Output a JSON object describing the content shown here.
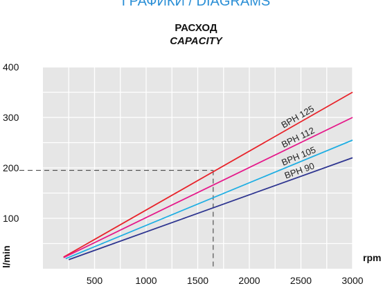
{
  "header": {
    "clipped_title": "ГРАФИКИ / DIAGRAMS",
    "title": "РАСХОД",
    "subtitle": "CAPACITY"
  },
  "chart_data": {
    "type": "line",
    "title": "РАСХОД",
    "subtitle": "CAPACITY",
    "xlabel": "rpm",
    "ylabel": "l/min",
    "xlim": [
      0,
      3000
    ],
    "ylim": [
      0,
      400
    ],
    "x_ticks": [
      500,
      1000,
      1500,
      2000,
      2500,
      3000
    ],
    "y_ticks": [
      100,
      200,
      300,
      400
    ],
    "x_grid_step": 250,
    "y_grid_step": 50,
    "grid": true,
    "legend": "labels on lines",
    "series": [
      {
        "name": "BPH 125",
        "color": "#e8232a",
        "x": [
          200,
          3000
        ],
        "y": [
          23,
          350
        ]
      },
      {
        "name": "BPH 112",
        "color": "#e5198a",
        "x": [
          200,
          3000
        ],
        "y": [
          22,
          300
        ]
      },
      {
        "name": "BPH 105",
        "color": "#1eaee3",
        "x": [
          220,
          3000
        ],
        "y": [
          20,
          255
        ]
      },
      {
        "name": "BPH 90",
        "color": "#2e3590",
        "x": [
          250,
          3000
        ],
        "y": [
          18,
          220
        ]
      }
    ],
    "reference_point": {
      "x": 1650,
      "y": 195
    }
  }
}
